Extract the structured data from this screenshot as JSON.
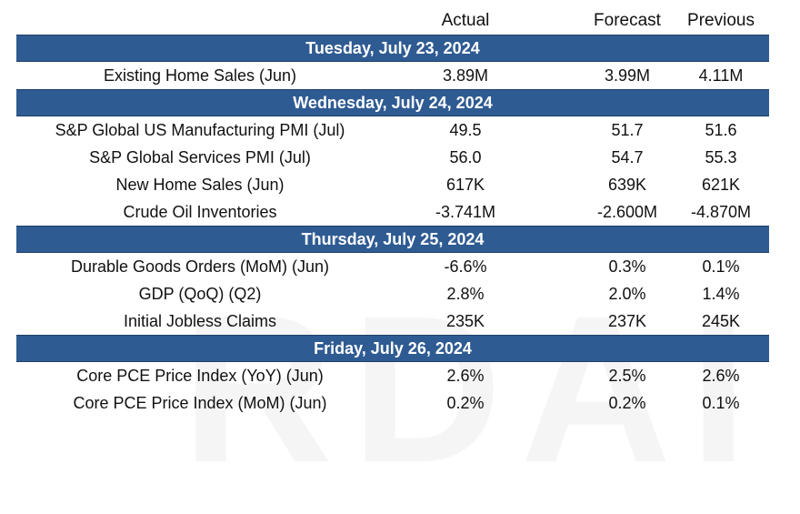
{
  "watermark": "RDAI",
  "headers": {
    "actual": "Actual",
    "forecast": "Forecast",
    "previous": "Previous"
  },
  "days": [
    {
      "label": "Tuesday, July 23, 2024",
      "events": [
        {
          "name": "Existing Home Sales (Jun)",
          "actual": "3.89M",
          "forecast": "3.99M",
          "previous": "4.11M"
        }
      ]
    },
    {
      "label": "Wednesday, July 24, 2024",
      "events": [
        {
          "name": "S&P Global US Manufacturing PMI (Jul)",
          "actual": "49.5",
          "forecast": "51.7",
          "previous": "51.6"
        },
        {
          "name": "S&P Global Services PMI (Jul)",
          "actual": "56.0",
          "forecast": "54.7",
          "previous": "55.3"
        },
        {
          "name": "New Home Sales (Jun)",
          "actual": "617K",
          "forecast": "639K",
          "previous": "621K"
        },
        {
          "name": "Crude Oil Inventories",
          "actual": "-3.741M",
          "forecast": "-2.600M",
          "previous": "-4.870M"
        }
      ]
    },
    {
      "label": "Thursday, July 25, 2024",
      "events": [
        {
          "name": "Durable Goods Orders (MoM) (Jun)",
          "actual": "-6.6%",
          "forecast": "0.3%",
          "previous": "0.1%"
        },
        {
          "name": "GDP (QoQ) (Q2)",
          "actual": "2.8%",
          "forecast": "2.0%",
          "previous": "1.4%"
        },
        {
          "name": "Initial Jobless Claims",
          "actual": "235K",
          "forecast": "237K",
          "previous": "245K"
        }
      ]
    },
    {
      "label": "Friday, July 26, 2024",
      "events": [
        {
          "name": "Core PCE Price Index (YoY) (Jun)",
          "actual": "2.6%",
          "forecast": "2.5%",
          "previous": "2.6%"
        },
        {
          "name": "Core PCE Price Index (MoM) (Jun)",
          "actual": "0.2%",
          "forecast": "0.2%",
          "previous": "0.1%"
        }
      ]
    }
  ]
}
